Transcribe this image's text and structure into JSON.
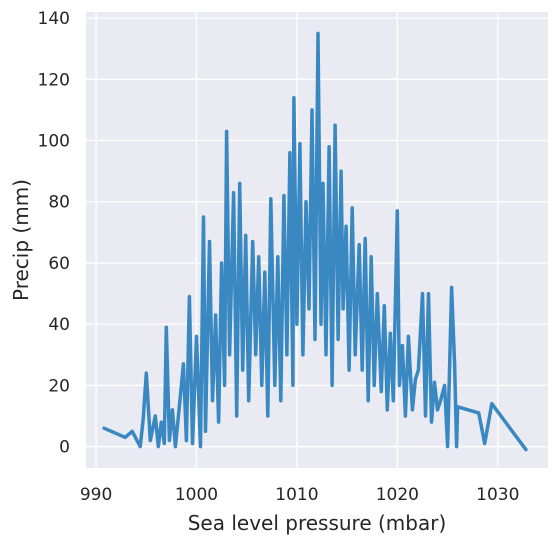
{
  "chart_data": {
    "type": "line",
    "title": "",
    "xlabel": "Sea level pressure (mbar)",
    "ylabel": "Precip (mm)",
    "xlim": [
      989,
      1035
    ],
    "ylim": [
      -7,
      142
    ],
    "xticks": [
      990,
      1000,
      1010,
      1020,
      1030
    ],
    "yticks": [
      0,
      20,
      40,
      60,
      80,
      100,
      120,
      140
    ],
    "grid": true,
    "background": "#eaeaf2",
    "grid_color": "#ffffff",
    "series_color": "#3a88c2",
    "series": [
      {
        "x": [
          990.8,
          992.9,
          993.6,
          994.4,
          994.7,
          995.0,
          995.4,
          995.9,
          996.2,
          996.5,
          996.8,
          997.0,
          997.3,
          997.6,
          997.9,
          998.2,
          998.5,
          998.7,
          999.0,
          999.3,
          999.6,
          1000.0,
          1000.4,
          1000.7,
          1000.9,
          1001.3,
          1001.6,
          1001.9,
          1002.2,
          1002.5,
          1002.8,
          1003.0,
          1003.3,
          1003.7,
          1004.0,
          1004.3,
          1004.6,
          1004.9,
          1005.2,
          1005.6,
          1005.9,
          1006.2,
          1006.5,
          1006.8,
          1007.1,
          1007.4,
          1007.8,
          1008.1,
          1008.4,
          1008.7,
          1009.0,
          1009.3,
          1009.6,
          1009.7,
          1010.0,
          1010.3,
          1010.6,
          1010.9,
          1011.2,
          1011.5,
          1011.8,
          1012.1,
          1012.4,
          1012.6,
          1012.9,
          1013.2,
          1013.5,
          1013.8,
          1014.1,
          1014.4,
          1014.6,
          1014.9,
          1015.2,
          1015.5,
          1015.8,
          1016.2,
          1016.5,
          1016.8,
          1017.1,
          1017.4,
          1017.7,
          1018.0,
          1018.4,
          1018.7,
          1019.0,
          1019.3,
          1019.6,
          1020.0,
          1020.2,
          1020.5,
          1020.8,
          1021.1,
          1021.5,
          1021.8,
          1022.1,
          1022.5,
          1022.8,
          1023.1,
          1023.4,
          1023.7,
          1024.0,
          1024.3,
          1024.7,
          1025.0,
          1025.4,
          1025.7,
          1025.9,
          1026.0,
          1028.1,
          1028.7,
          1029.4,
          1032.8
        ],
        "values": [
          6,
          3,
          5,
          0,
          9,
          24,
          2,
          10,
          0,
          8,
          1,
          39,
          2,
          12,
          0,
          10,
          20,
          27,
          2,
          49,
          1,
          36,
          0,
          75,
          5,
          67,
          15,
          43,
          8,
          60,
          20,
          103,
          30,
          83,
          10,
          86,
          25,
          69,
          15,
          67,
          30,
          62,
          20,
          57,
          10,
          81,
          20,
          62,
          15,
          82,
          30,
          96,
          20,
          114,
          40,
          99,
          30,
          80,
          45,
          110,
          35,
          135,
          40,
          86,
          30,
          98,
          20,
          105,
          35,
          90,
          45,
          72,
          25,
          78,
          30,
          66,
          25,
          68,
          15,
          62,
          20,
          50,
          18,
          46,
          12,
          37,
          15,
          77,
          20,
          33,
          10,
          36,
          12,
          22,
          25,
          50,
          10,
          50,
          8,
          21,
          12,
          15,
          20,
          0,
          52,
          27,
          0,
          13,
          11,
          1,
          14,
          -1
        ]
      }
    ]
  }
}
